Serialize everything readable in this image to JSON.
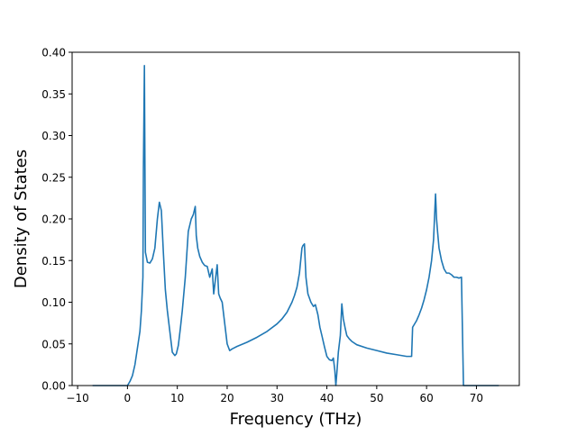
{
  "chart_data": {
    "type": "line",
    "title": "",
    "xlabel": "Frequency (THz)",
    "ylabel": "Density of States",
    "xlim": [
      -11.1,
      78.6
    ],
    "ylim": [
      0.0,
      0.4
    ],
    "x_ticks": [
      -10,
      0,
      10,
      20,
      30,
      40,
      50,
      60,
      70
    ],
    "x_tick_labels": [
      "−10",
      "0",
      "10",
      "20",
      "30",
      "40",
      "50",
      "60",
      "70"
    ],
    "y_ticks": [
      0.0,
      0.05,
      0.1,
      0.15,
      0.2,
      0.25,
      0.3,
      0.35,
      0.4
    ],
    "y_tick_labels": [
      "0.00",
      "0.05",
      "0.10",
      "0.15",
      "0.20",
      "0.25",
      "0.30",
      "0.35",
      "0.40"
    ],
    "grid": false,
    "line_color": "#1f77b4",
    "series": [
      {
        "x": [
          -7.0,
          -5.0,
          -3.0,
          -1.0,
          0.0,
          0.5,
          1.0,
          1.5,
          2.0,
          2.5,
          2.8,
          3.1,
          3.2,
          3.4,
          3.6,
          4.0,
          4.5,
          5.0,
          5.5,
          6.0,
          6.4,
          6.8,
          7.2,
          7.6,
          8.0,
          8.5,
          9.0,
          9.5,
          9.8,
          10.2,
          10.6,
          11.0,
          11.6,
          12.2,
          12.8,
          13.2,
          13.6,
          13.8,
          14.1,
          14.5,
          15.0,
          15.5,
          16.0,
          16.5,
          17.0,
          17.3,
          17.6,
          18.0,
          18.3,
          18.6,
          19.0,
          19.5,
          20.0,
          20.5,
          21.0,
          22.0,
          24.0,
          26.0,
          28.0,
          30.0,
          31.0,
          32.0,
          33.0,
          33.5,
          34.0,
          34.5,
          35.0,
          35.2,
          35.5,
          35.8,
          36.2,
          36.8,
          37.3,
          37.7,
          38.2,
          38.6,
          39.0,
          39.5,
          40.0,
          40.5,
          41.0,
          41.3,
          41.6,
          41.8,
          42.0,
          42.3,
          42.7,
          43.0,
          43.3,
          43.7,
          44.0,
          44.5,
          45.0,
          46.0,
          48.0,
          50.0,
          52.0,
          54.0,
          56.0,
          57.0,
          57.2,
          57.5,
          58.0,
          58.5,
          59.0,
          59.5,
          60.0,
          60.5,
          61.0,
          61.4,
          61.8,
          62.0,
          62.2,
          62.5,
          63.0,
          63.5,
          64.0,
          64.5,
          65.0,
          65.5,
          66.0,
          66.5,
          67.0,
          67.4,
          67.7,
          68.0,
          69.0,
          72.0,
          74.5
        ],
        "y": [
          0.0,
          0.0,
          0.0,
          0.0,
          0.0,
          0.005,
          0.012,
          0.025,
          0.045,
          0.065,
          0.09,
          0.13,
          0.26,
          0.384,
          0.16,
          0.148,
          0.147,
          0.152,
          0.165,
          0.2,
          0.22,
          0.21,
          0.16,
          0.115,
          0.09,
          0.065,
          0.04,
          0.036,
          0.038,
          0.048,
          0.068,
          0.09,
          0.13,
          0.185,
          0.2,
          0.205,
          0.215,
          0.18,
          0.165,
          0.155,
          0.148,
          0.144,
          0.143,
          0.13,
          0.14,
          0.11,
          0.125,
          0.145,
          0.11,
          0.105,
          0.1,
          0.075,
          0.05,
          0.042,
          0.044,
          0.047,
          0.052,
          0.058,
          0.065,
          0.074,
          0.08,
          0.088,
          0.1,
          0.108,
          0.118,
          0.135,
          0.165,
          0.168,
          0.17,
          0.13,
          0.11,
          0.1,
          0.095,
          0.097,
          0.085,
          0.07,
          0.06,
          0.047,
          0.035,
          0.031,
          0.03,
          0.033,
          0.018,
          0.0,
          0.015,
          0.04,
          0.06,
          0.098,
          0.08,
          0.068,
          0.06,
          0.056,
          0.053,
          0.049,
          0.045,
          0.042,
          0.039,
          0.037,
          0.035,
          0.035,
          0.07,
          0.073,
          0.078,
          0.085,
          0.093,
          0.103,
          0.115,
          0.13,
          0.15,
          0.175,
          0.23,
          0.2,
          0.185,
          0.165,
          0.15,
          0.14,
          0.135,
          0.135,
          0.133,
          0.13,
          0.13,
          0.129,
          0.13,
          0.0,
          0.0,
          0.0,
          0.0,
          0.0,
          0.0
        ]
      }
    ]
  }
}
